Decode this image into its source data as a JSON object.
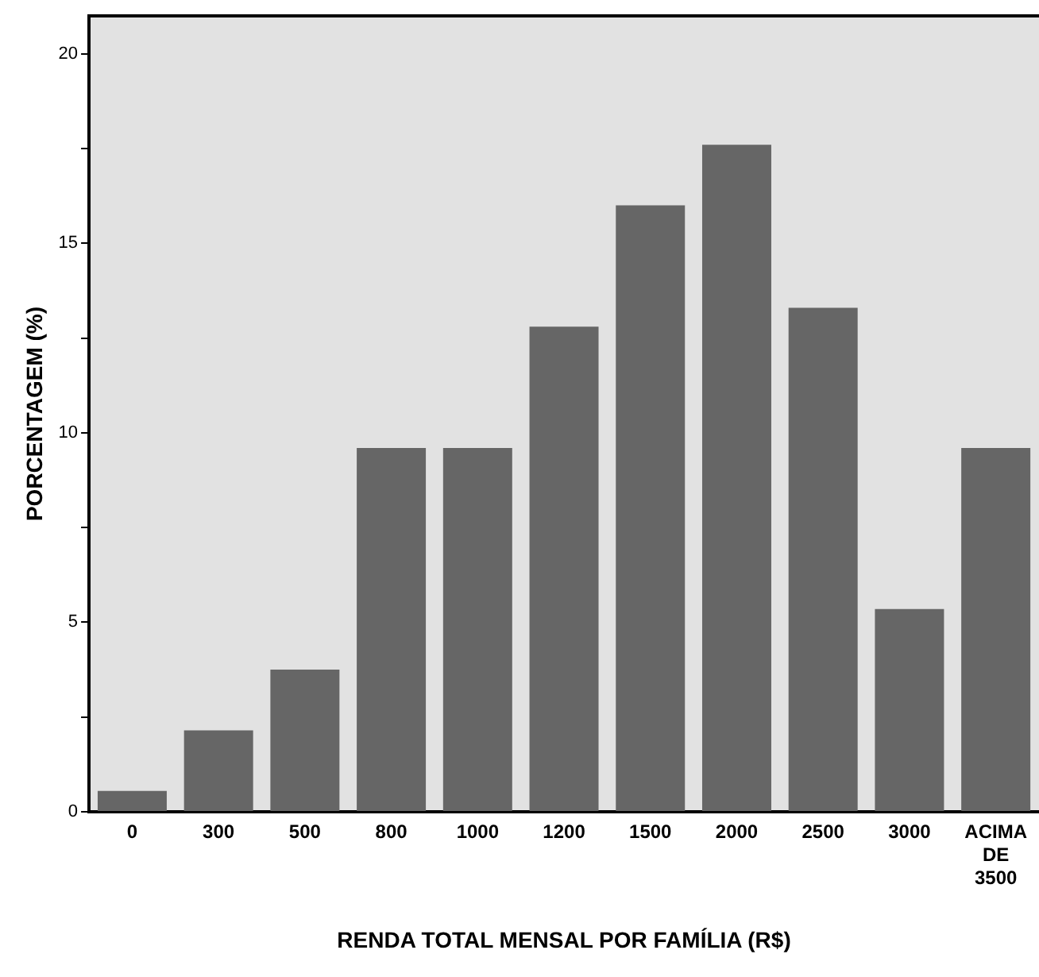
{
  "chart_data": {
    "type": "bar",
    "xlabel": "RENDA TOTAL MENSAL POR FAMÍLIA (R$)",
    "ylabel": "PORCENTAGEM (%)",
    "categories": [
      "0",
      "300",
      "500",
      "800",
      "1000",
      "1200",
      "1500",
      "2000",
      "2500",
      "3000",
      "ACIMA DE 3500"
    ],
    "values": [
      0.55,
      2.15,
      3.75,
      9.6,
      9.6,
      12.8,
      16.0,
      17.6,
      13.3,
      5.35,
      9.6
    ],
    "color": "#666666",
    "ylim": [
      0,
      21
    ],
    "yticks": [
      0,
      {
        "value": 2.5,
        "label": null
      },
      5,
      {
        "value": 7.5,
        "label": null
      },
      10,
      {
        "value": 12.5,
        "label": null
      },
      15,
      {
        "value": 17.5,
        "label": null
      },
      20
    ],
    "grid": false
  }
}
